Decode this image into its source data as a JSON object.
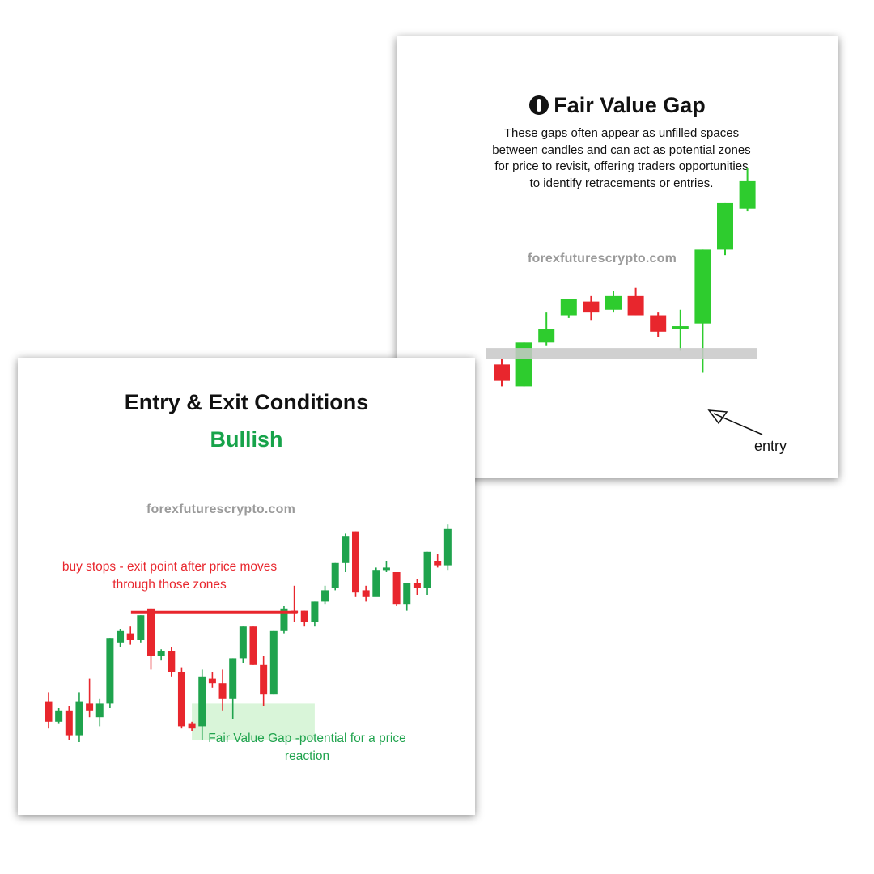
{
  "fvg_card": {
    "title": "Fair Value Gap",
    "logo_icon": "logo-icon",
    "description": "These gaps often appear as unfilled spaces between candles and can act as potential zones for price to revisit, offering traders opportunities to identify retracements or entries.",
    "watermark": "forexfuturescrypto.com",
    "entry_label": "entry"
  },
  "entry_card": {
    "title": "Entry & Exit Conditions",
    "subtitle": "Bullish",
    "watermark": "forexfuturescrypto.com",
    "buy_stops_note": "buy stops - exit point after price moves through those zones",
    "fvg_note": "Fair Value Gap -potential for a price reaction"
  },
  "colors": {
    "bull": "#1fa34d",
    "bull_bright": "#2ecc2e",
    "bear": "#e8262d",
    "fvg_zone": "#c8c8c8",
    "fvg_zone_green": "#d9f5d9"
  },
  "chart_data": [
    {
      "type": "candlestick",
      "name": "fvg",
      "ylim": [
        0,
        100
      ],
      "candles": [
        {
          "o": 28,
          "h": 30,
          "l": 20,
          "c": 22
        },
        {
          "o": 20,
          "h": 36,
          "l": 20,
          "c": 36
        },
        {
          "o": 36,
          "h": 47,
          "l": 35,
          "c": 41
        },
        {
          "o": 46,
          "h": 52,
          "l": 45,
          "c": 52
        },
        {
          "o": 51,
          "h": 53,
          "l": 44,
          "c": 47
        },
        {
          "o": 48,
          "h": 55,
          "l": 47,
          "c": 53
        },
        {
          "o": 53,
          "h": 56,
          "l": 46,
          "c": 46
        },
        {
          "o": 46,
          "h": 47,
          "l": 38,
          "c": 40
        },
        {
          "o": 41,
          "h": 48,
          "l": 33,
          "c": 42
        },
        {
          "o": 43,
          "h": 70,
          "l": 25,
          "c": 70
        },
        {
          "o": 70,
          "h": 87,
          "l": 68,
          "c": 87
        },
        {
          "o": 85,
          "h": 100,
          "l": 84,
          "c": 95
        }
      ],
      "zone": {
        "from_index": 0,
        "to_index": 10,
        "low": 30,
        "high": 34
      }
    },
    {
      "type": "candlestick",
      "name": "entry-exit",
      "ylim": [
        0,
        100
      ],
      "candles": [
        {
          "o": 18,
          "h": 22,
          "l": 6,
          "c": 9
        },
        {
          "o": 9,
          "h": 15,
          "l": 8,
          "c": 14
        },
        {
          "o": 14,
          "h": 16,
          "l": 1,
          "c": 3
        },
        {
          "o": 3,
          "h": 22,
          "l": 0,
          "c": 18
        },
        {
          "o": 17,
          "h": 28,
          "l": 11,
          "c": 14
        },
        {
          "o": 11,
          "h": 19,
          "l": 7,
          "c": 17
        },
        {
          "o": 17,
          "h": 46,
          "l": 15,
          "c": 46
        },
        {
          "o": 44,
          "h": 50,
          "l": 42,
          "c": 49
        },
        {
          "o": 48,
          "h": 51,
          "l": 43,
          "c": 45
        },
        {
          "o": 45,
          "h": 56,
          "l": 44,
          "c": 56
        },
        {
          "o": 59,
          "h": 59,
          "l": 32,
          "c": 38
        },
        {
          "o": 38,
          "h": 41,
          "l": 36,
          "c": 40
        },
        {
          "o": 40,
          "h": 42,
          "l": 29,
          "c": 31
        },
        {
          "o": 31,
          "h": 33,
          "l": 6,
          "c": 7
        },
        {
          "o": 8,
          "h": 9,
          "l": 5,
          "c": 6
        },
        {
          "o": 7,
          "h": 32,
          "l": 1,
          "c": 29
        },
        {
          "o": 28,
          "h": 31,
          "l": 24,
          "c": 26
        },
        {
          "o": 26,
          "h": 32,
          "l": 14,
          "c": 19
        },
        {
          "o": 19,
          "h": 37,
          "l": 10,
          "c": 37
        },
        {
          "o": 37,
          "h": 51,
          "l": 35,
          "c": 51
        },
        {
          "o": 51,
          "h": 51,
          "l": 34,
          "c": 34
        },
        {
          "o": 34,
          "h": 38,
          "l": 16,
          "c": 21
        },
        {
          "o": 21,
          "h": 49,
          "l": 21,
          "c": 49
        },
        {
          "o": 49,
          "h": 60,
          "l": 48,
          "c": 59
        },
        {
          "o": 58,
          "h": 69,
          "l": 53,
          "c": 57
        },
        {
          "o": 58,
          "h": 58,
          "l": 51,
          "c": 53
        },
        {
          "o": 53,
          "h": 62,
          "l": 51,
          "c": 62
        },
        {
          "o": 62,
          "h": 69,
          "l": 61,
          "c": 67
        },
        {
          "o": 68,
          "h": 79,
          "l": 67,
          "c": 79
        },
        {
          "o": 79,
          "h": 92,
          "l": 75,
          "c": 91
        },
        {
          "o": 93,
          "h": 93,
          "l": 64,
          "c": 66
        },
        {
          "o": 67,
          "h": 69,
          "l": 62,
          "c": 64
        },
        {
          "o": 64,
          "h": 77,
          "l": 65,
          "c": 76
        },
        {
          "o": 77,
          "h": 80,
          "l": 75,
          "c": 77
        },
        {
          "o": 75,
          "h": 75,
          "l": 60,
          "c": 61
        },
        {
          "o": 61,
          "h": 70,
          "l": 58,
          "c": 70
        },
        {
          "o": 70,
          "h": 72,
          "l": 65,
          "c": 68
        },
        {
          "o": 68,
          "h": 84,
          "l": 65,
          "c": 84
        },
        {
          "o": 80,
          "h": 83,
          "l": 77,
          "c": 78
        },
        {
          "o": 78,
          "h": 96,
          "l": 76,
          "c": 94
        }
      ],
      "buy_stops_level": 59,
      "buy_stops_from_index": 9,
      "buy_stops_to_index": 24,
      "zone": {
        "from_index": 14,
        "to_index": 26,
        "low": 1,
        "high": 17
      }
    }
  ]
}
